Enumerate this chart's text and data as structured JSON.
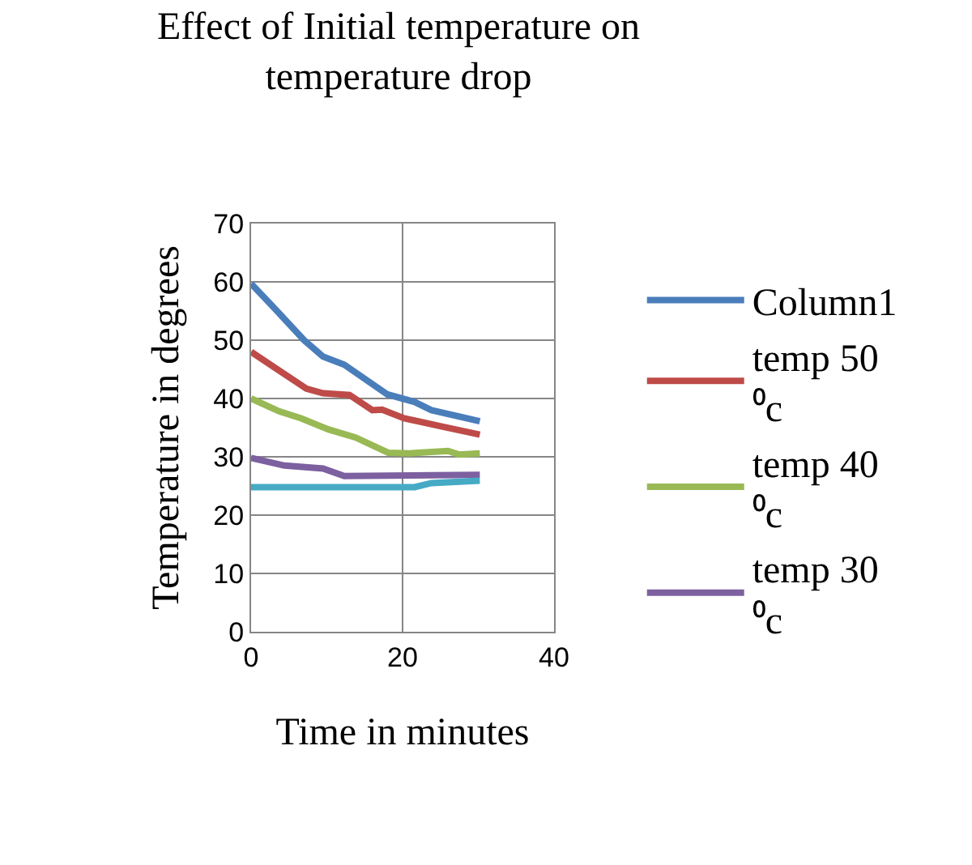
{
  "chart_data": {
    "type": "line",
    "title": "Effect of Initial temperature on temperature drop",
    "xlabel": "Time in minutes",
    "ylabel": "Temperature in degrees",
    "xlim": [
      0,
      40
    ],
    "xticks": [
      0,
      20,
      40
    ],
    "ylim": [
      0,
      70
    ],
    "yticks": [
      0,
      10,
      20,
      30,
      40,
      50,
      60,
      70
    ],
    "grid": true,
    "legend": "right",
    "marker": "none",
    "line_style": "solid",
    "series": [
      {
        "name": "Column1",
        "color": "#4a7ebb",
        "x": [
          0,
          3,
          7,
          9.5,
          12.3,
          18,
          21.6,
          23.8,
          30.2
        ],
        "values": [
          59.7,
          55.6,
          50,
          47.2,
          45.8,
          40.7,
          39.4,
          38,
          36.1
        ]
      },
      {
        "name": "temp 50 ⁰c",
        "color": "#be4b48",
        "x": [
          0,
          3,
          7.3,
          9.5,
          13,
          16,
          17.3,
          20.2,
          25.2,
          30.2
        ],
        "values": [
          48,
          45.4,
          41.7,
          40.9,
          40.6,
          38,
          38.1,
          36.6,
          35.2,
          33.8
        ]
      },
      {
        "name": "temp 40 ⁰c",
        "color": "#98b954",
        "x": [
          0,
          3.7,
          6.6,
          10.2,
          13.8,
          18.1,
          20.9,
          26,
          27.4,
          30.2
        ],
        "values": [
          40,
          37.8,
          36.6,
          34.7,
          33.3,
          30.7,
          30.6,
          31,
          30.4,
          30.6
        ]
      },
      {
        "name": "temp 30 ⁰c",
        "color": "#7d60a0",
        "x": [
          0,
          4.4,
          9.5,
          12.3,
          30.2
        ],
        "values": [
          29.8,
          28.5,
          28,
          26.7,
          26.9
        ]
      },
      {
        "color": "#46aac5",
        "x": [
          0,
          21.6,
          23.8,
          30.2
        ],
        "values": [
          24.8,
          24.8,
          25.5,
          25.9
        ]
      }
    ]
  }
}
